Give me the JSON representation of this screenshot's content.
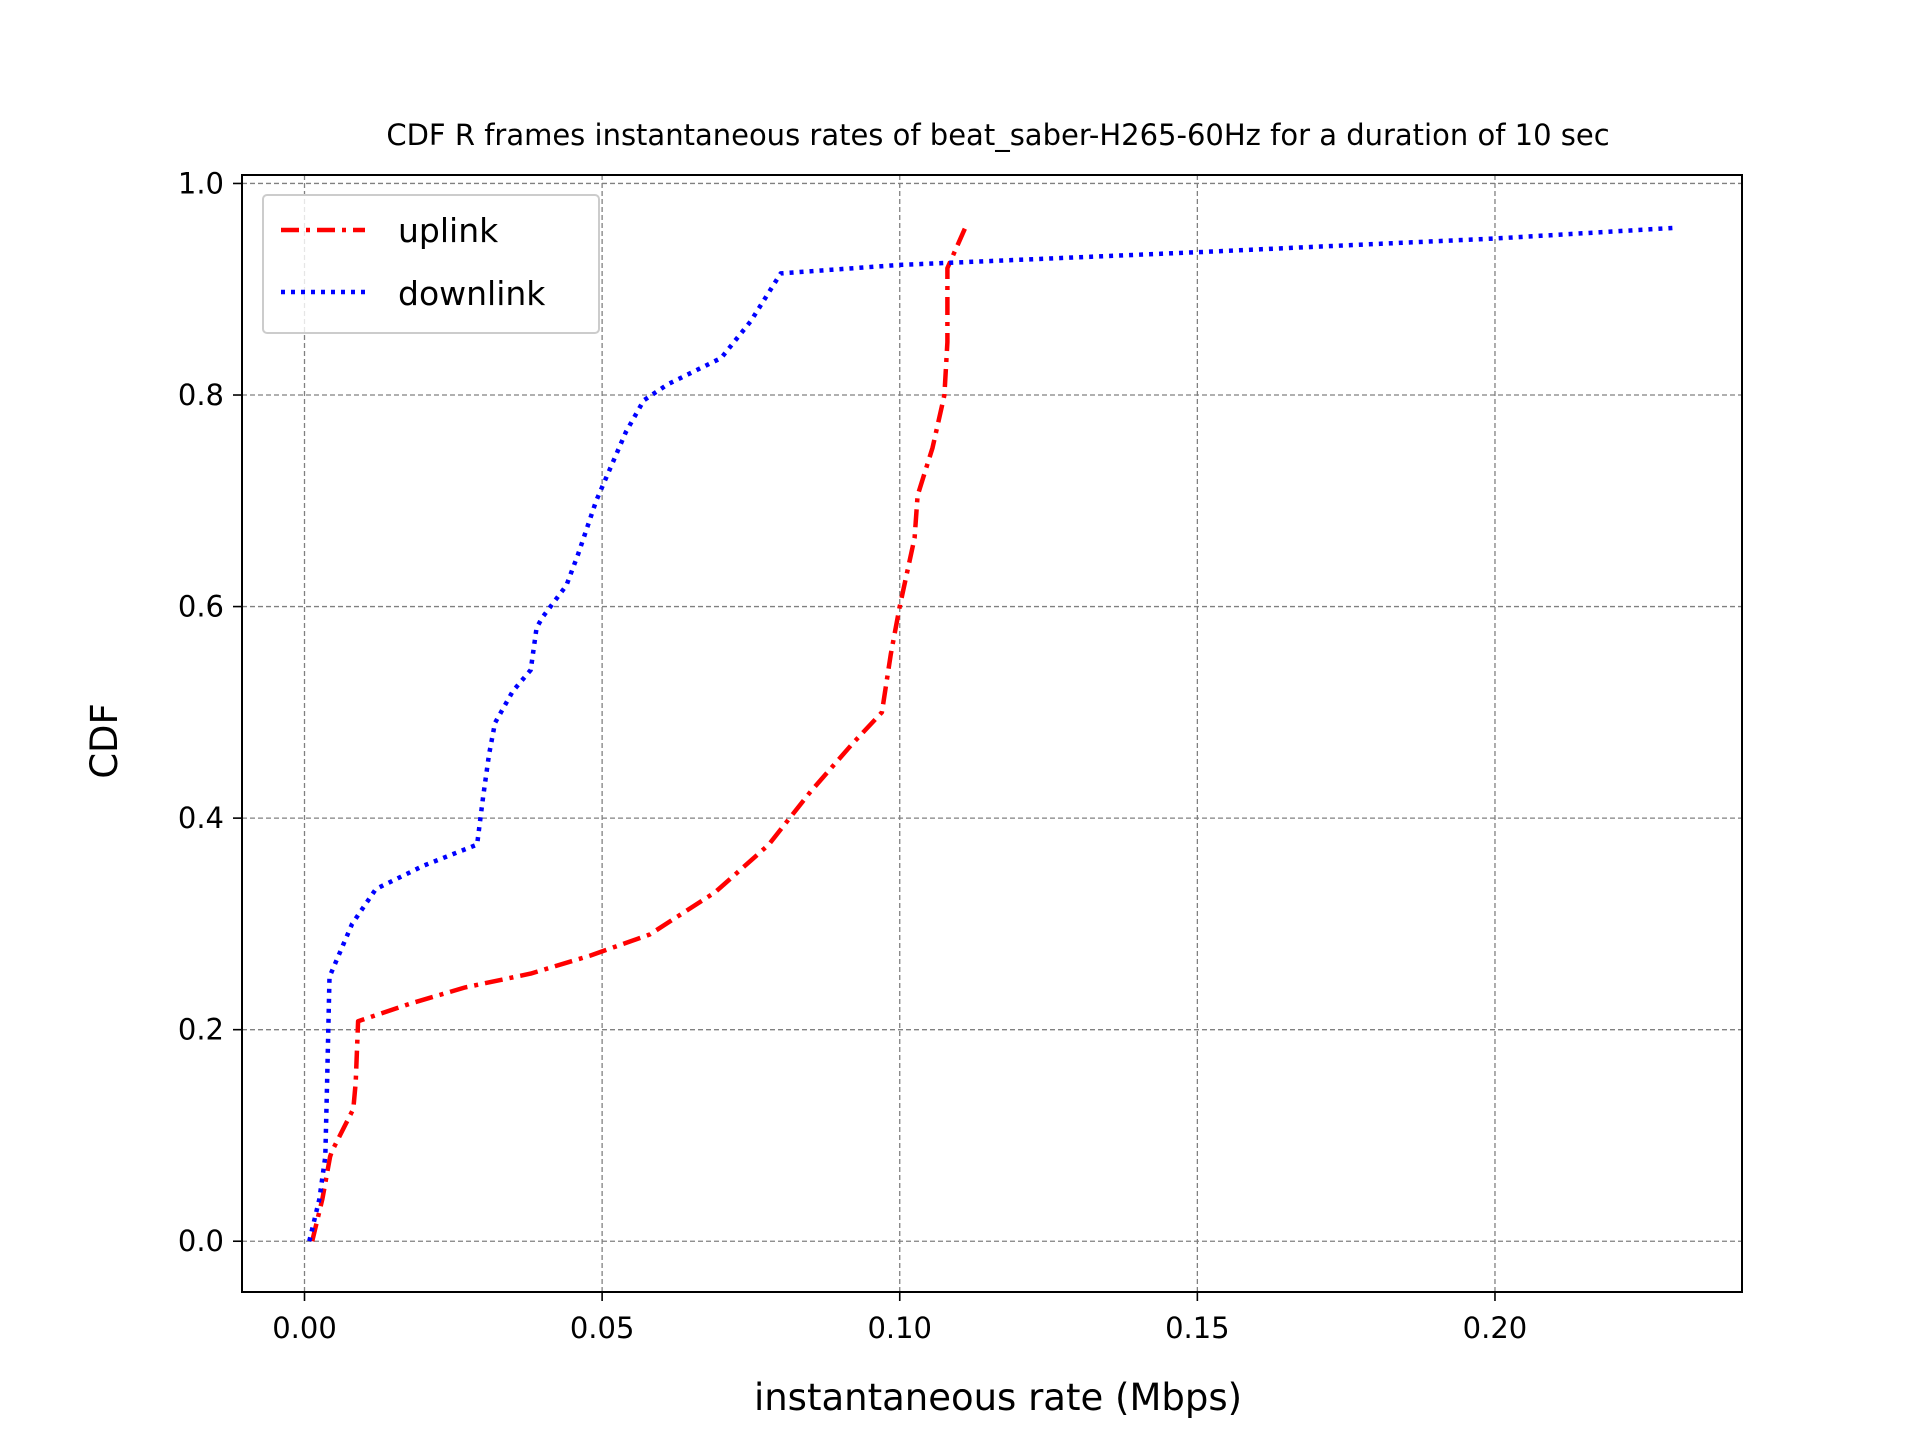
{
  "chart_data": {
    "type": "line",
    "title": "CDF R frames instantaneous rates of beat_saber-H265-60Hz for a duration of 10 sec",
    "xlabel": "instantaneous rate (Mbps)",
    "ylabel": "CDF",
    "xlim": [
      -0.0105,
      0.2415
    ],
    "ylim": [
      -0.048,
      1.008
    ],
    "xticks": [
      0.0,
      0.05,
      0.1,
      0.15,
      0.2
    ],
    "xtick_labels": [
      "0.00",
      "0.05",
      "0.10",
      "0.15",
      "0.20"
    ],
    "yticks": [
      0.0,
      0.2,
      0.4,
      0.6,
      0.8,
      1.0
    ],
    "ytick_labels": [
      "0.0",
      "0.2",
      "0.4",
      "0.6",
      "0.8",
      "1.0"
    ],
    "grid": true,
    "legend_position": "top-left",
    "series": [
      {
        "name": "uplink",
        "color": "#ff0000",
        "style": "dashdot",
        "x": [
          0.0013,
          0.003,
          0.0043,
          0.0046,
          0.0082,
          0.0086,
          0.009,
          0.018,
          0.027,
          0.038,
          0.048,
          0.058,
          0.069,
          0.078,
          0.085,
          0.092,
          0.097,
          0.0985,
          0.1,
          0.1025,
          0.103,
          0.1055,
          0.1075,
          0.108,
          0.108,
          0.111
        ],
        "y": [
          0.0,
          0.04,
          0.08,
          0.085,
          0.125,
          0.15,
          0.208,
          0.225,
          0.24,
          0.253,
          0.27,
          0.29,
          0.33,
          0.375,
          0.425,
          0.47,
          0.5,
          0.555,
          0.6,
          0.665,
          0.705,
          0.75,
          0.8,
          0.85,
          0.92,
          0.958
        ]
      },
      {
        "name": "downlink",
        "color": "#0000ff",
        "style": "dotted",
        "x": [
          0.0008,
          0.0025,
          0.0035,
          0.0038,
          0.004,
          0.0042,
          0.008,
          0.012,
          0.02,
          0.029,
          0.03,
          0.031,
          0.032,
          0.035,
          0.038,
          0.039,
          0.04,
          0.044,
          0.046,
          0.049,
          0.054,
          0.057,
          0.061,
          0.07,
          0.075,
          0.08,
          0.1,
          0.15,
          0.2,
          0.23
        ],
        "y": [
          0.0,
          0.04,
          0.08,
          0.15,
          0.2,
          0.25,
          0.3,
          0.333,
          0.355,
          0.375,
          0.42,
          0.46,
          0.49,
          0.52,
          0.54,
          0.58,
          0.59,
          0.62,
          0.65,
          0.7,
          0.765,
          0.795,
          0.81,
          0.835,
          0.87,
          0.915,
          0.923,
          0.935,
          0.948,
          0.958
        ]
      }
    ]
  }
}
